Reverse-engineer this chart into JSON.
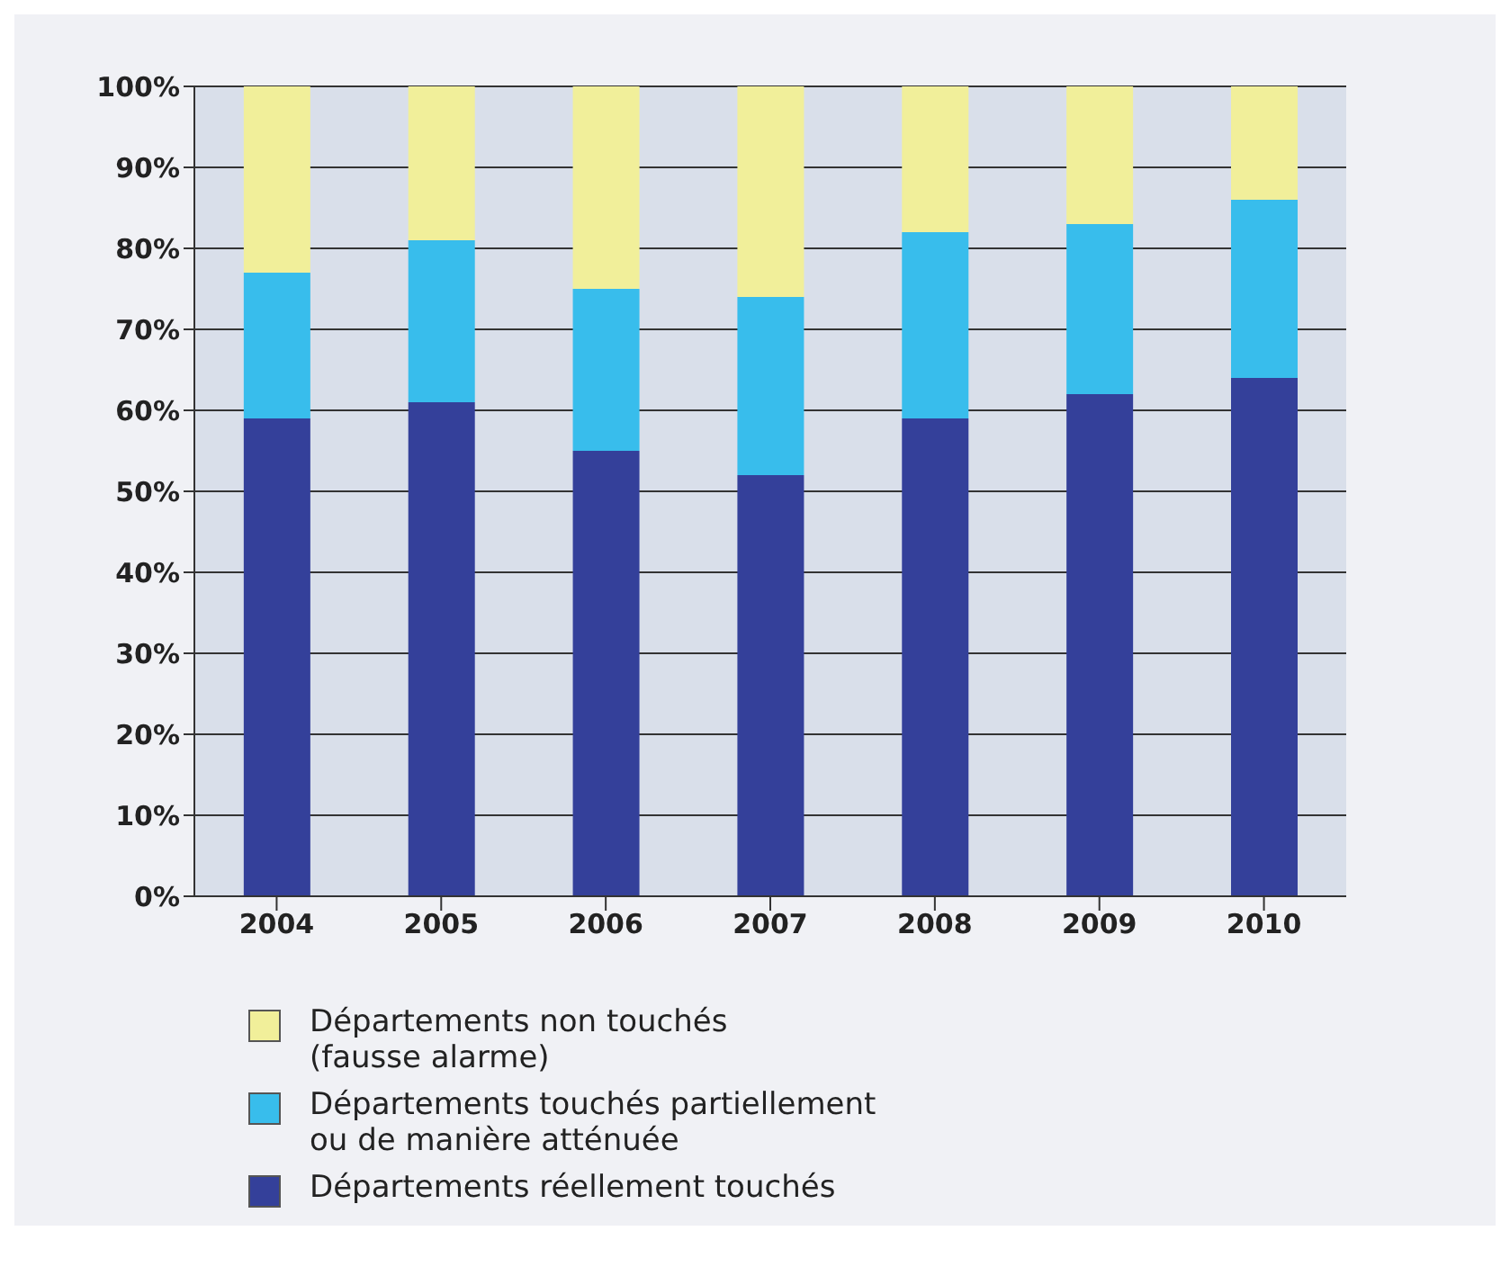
{
  "chart_data": {
    "type": "bar",
    "stacked": true,
    "categories": [
      "2004",
      "2005",
      "2006",
      "2007",
      "2008",
      "2009",
      "2010"
    ],
    "series": [
      {
        "name": "Départements réellement touchés",
        "color": "#34409a",
        "values": [
          59,
          61,
          55,
          52,
          59,
          62,
          64
        ]
      },
      {
        "name": "Départements touchés partiellement\n ou de manière atténuée",
        "color": "#38bdec",
        "values": [
          18,
          20,
          20,
          22,
          23,
          21,
          22
        ]
      },
      {
        "name": "Départements non touchés\n(fausse alarme)",
        "color": "#f1ef9a",
        "values": [
          23,
          19,
          25,
          26,
          18,
          17,
          14
        ]
      }
    ],
    "ylim": [
      0,
      100
    ],
    "yticks": [
      {
        "value": 0,
        "label": "0%"
      },
      {
        "value": 10,
        "label": "10%"
      },
      {
        "value": 20,
        "label": "20%"
      },
      {
        "value": 30,
        "label": "30%"
      },
      {
        "value": 40,
        "label": "40%"
      },
      {
        "value": 50,
        "label": "50%"
      },
      {
        "value": 60,
        "label": "60%"
      },
      {
        "value": 70,
        "label": "70%"
      },
      {
        "value": 80,
        "label": "80%"
      },
      {
        "value": 90,
        "label": "90%"
      },
      {
        "value": 100,
        "label": "100%"
      }
    ],
    "grid": "y",
    "legend": "bottom"
  }
}
